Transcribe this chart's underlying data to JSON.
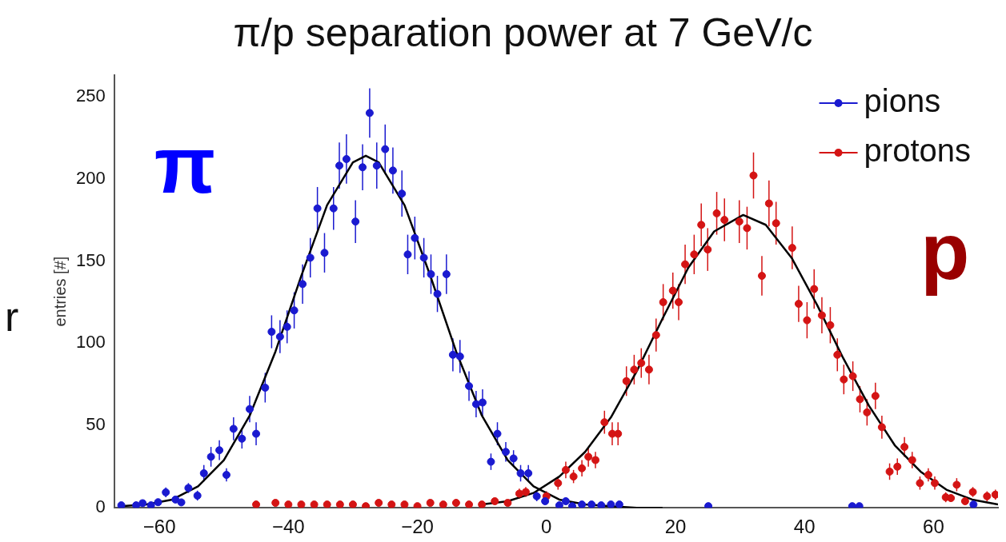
{
  "chart_data": {
    "type": "scatter",
    "title": "π/p separation power at 7 GeV/c",
    "ylabel": "entries [#]",
    "xlim": [
      -67,
      70
    ],
    "xticks": [
      -60,
      -40,
      -20,
      0,
      20,
      40,
      60
    ],
    "ylim": [
      0,
      263
    ],
    "yticks": [
      0,
      50,
      100,
      150,
      200,
      250
    ],
    "grid": false,
    "legend": "top right",
    "annotations": [
      "π",
      "p",
      "r"
    ],
    "series": [
      {
        "name": "pions",
        "color": "#1a1ad0",
        "x": [
          -65.9,
          -63.6,
          -62.6,
          -61.3,
          -60.2,
          -59,
          -57.5,
          -56.6,
          -55.5,
          -54.1,
          -53.1,
          -52,
          -50.7,
          -49.6,
          -48.5,
          -47.2,
          -46,
          -45,
          -43.6,
          -42.6,
          -41.3,
          -40.2,
          -39.1,
          -37.8,
          -36.6,
          -35.5,
          -34.4,
          -33,
          -32.1,
          -31,
          -29.6,
          -28.5,
          -27.4,
          -26.3,
          -25,
          -23.8,
          -22.4,
          -21.5,
          -20.4,
          -19,
          -17.9,
          -16.9,
          -15.5,
          -14.5,
          -13.4,
          -12,
          -10.9,
          -9.9,
          -8.6,
          -7.6,
          -6.3,
          -5.1,
          -4,
          -2.8,
          -1.5,
          -0.2,
          2,
          3,
          4,
          5.5,
          7,
          8.5,
          10,
          11.3,
          25.1,
          47.4,
          48.5,
          66.2
        ],
        "values": [
          1.5,
          1.5,
          2.8,
          1.5,
          3.4,
          9.4,
          5,
          3.3,
          12,
          7.4,
          21,
          31,
          35,
          20,
          48,
          42,
          60,
          45,
          73,
          107,
          104,
          110,
          120,
          136,
          152,
          182,
          155,
          182,
          208,
          212,
          174,
          207,
          240,
          208,
          218,
          205,
          191,
          154,
          164,
          152,
          142,
          130,
          142,
          93,
          92,
          74,
          63,
          64,
          28,
          45,
          34,
          30,
          21,
          21,
          7,
          4,
          1.5,
          4,
          1,
          2,
          2,
          1.5,
          2,
          2,
          1,
          1,
          1,
          2
        ],
        "errors": [
          null,
          null,
          null,
          null,
          null,
          3,
          2,
          null,
          3,
          3,
          5,
          6,
          6,
          4,
          7,
          6,
          8,
          7,
          9,
          10,
          10,
          10,
          11,
          12,
          12,
          13,
          12,
          13,
          14,
          15,
          13,
          14,
          15,
          14,
          15,
          14,
          14,
          12,
          13,
          12,
          12,
          11,
          12,
          10,
          10,
          9,
          8,
          8,
          5,
          7,
          6,
          5,
          5,
          5,
          3,
          2,
          null,
          2,
          null,
          null,
          null,
          null,
          null,
          null,
          null,
          null,
          null,
          null
        ]
      },
      {
        "name": "protons",
        "color": "#d41414",
        "x": [
          -45,
          -42,
          -40,
          -38,
          -36,
          -34,
          -32,
          -30,
          -28,
          -26,
          -24,
          -22,
          -20,
          -18,
          -16,
          -14,
          -12,
          -10,
          -8,
          -6,
          -4.2,
          -3.2,
          0,
          1.8,
          3,
          4.2,
          5.5,
          6.5,
          7.6,
          9,
          10.2,
          11.1,
          12.4,
          13.6,
          14.7,
          15.9,
          17,
          18.1,
          19.6,
          20.5,
          21.5,
          22.9,
          24,
          25,
          26.4,
          27.6,
          29.9,
          31.1,
          32.1,
          33.4,
          34.5,
          35.6,
          38.1,
          39.1,
          40.4,
          41.5,
          42.7,
          44,
          45.1,
          46.1,
          47.5,
          48.6,
          49.7,
          51,
          52,
          53.2,
          54.4,
          55.5,
          56.7,
          57.9,
          59.2,
          60.2,
          61.9,
          62.7,
          63.6,
          64.9,
          66.1,
          68.3,
          69.6
        ],
        "values": [
          2,
          3,
          2,
          2,
          2,
          2,
          2,
          2,
          1,
          3,
          2,
          2,
          1,
          3,
          2,
          3,
          2,
          2,
          4,
          3,
          8.6,
          9.6,
          7,
          15,
          23,
          19,
          24,
          31,
          29,
          52,
          45,
          45,
          77,
          84,
          88,
          84,
          105,
          125,
          132,
          125,
          148,
          154,
          172,
          157,
          179,
          175,
          174,
          170,
          202,
          141,
          185,
          173,
          158,
          124,
          114,
          133,
          117,
          111,
          93,
          78,
          80,
          66,
          58,
          68,
          49,
          22,
          25,
          37,
          29,
          15,
          20,
          15,
          6.4,
          5.9,
          14,
          4,
          9.6,
          7,
          8
        ],
        "errors": [
          null,
          null,
          null,
          null,
          null,
          null,
          null,
          null,
          null,
          null,
          null,
          null,
          null,
          null,
          null,
          null,
          null,
          null,
          null,
          null,
          3,
          3,
          3,
          4,
          5,
          4,
          5,
          6,
          5,
          7,
          7,
          7,
          9,
          9,
          9,
          9,
          10,
          11,
          11,
          11,
          12,
          12,
          13,
          13,
          13,
          13,
          13,
          13,
          14,
          12,
          14,
          13,
          13,
          11,
          11,
          12,
          11,
          11,
          10,
          9,
          9,
          8,
          8,
          8,
          7,
          5,
          5,
          6,
          5,
          4,
          4,
          4,
          3,
          2,
          4,
          2,
          3,
          3,
          3
        ]
      },
      {
        "type": "line",
        "color": "#000000",
        "x": [
          -66,
          -62,
          -58,
          -54,
          -50,
          -46,
          -42,
          -38,
          -34,
          -30,
          -28,
          -26,
          -22,
          -18,
          -14,
          -10,
          -6,
          -2,
          2,
          6,
          10,
          14,
          18
        ],
        "values": [
          1,
          2,
          5,
          13,
          29,
          56,
          95,
          141,
          184,
          210,
          214,
          210,
          184,
          141,
          95,
          56,
          29,
          13,
          5,
          2,
          1,
          0,
          0
        ]
      },
      {
        "type": "line",
        "color": "#000000",
        "x": [
          -10,
          -6,
          -2,
          2,
          6,
          10,
          14,
          18,
          22,
          26,
          30.5,
          34,
          38,
          42,
          46,
          50,
          54,
          58,
          62,
          66,
          70
        ],
        "values": [
          2,
          4,
          9,
          19,
          34,
          55,
          83,
          115,
          146,
          168,
          178,
          172,
          152,
          123,
          91,
          62,
          38,
          22,
          11,
          5,
          2
        ]
      }
    ]
  }
}
